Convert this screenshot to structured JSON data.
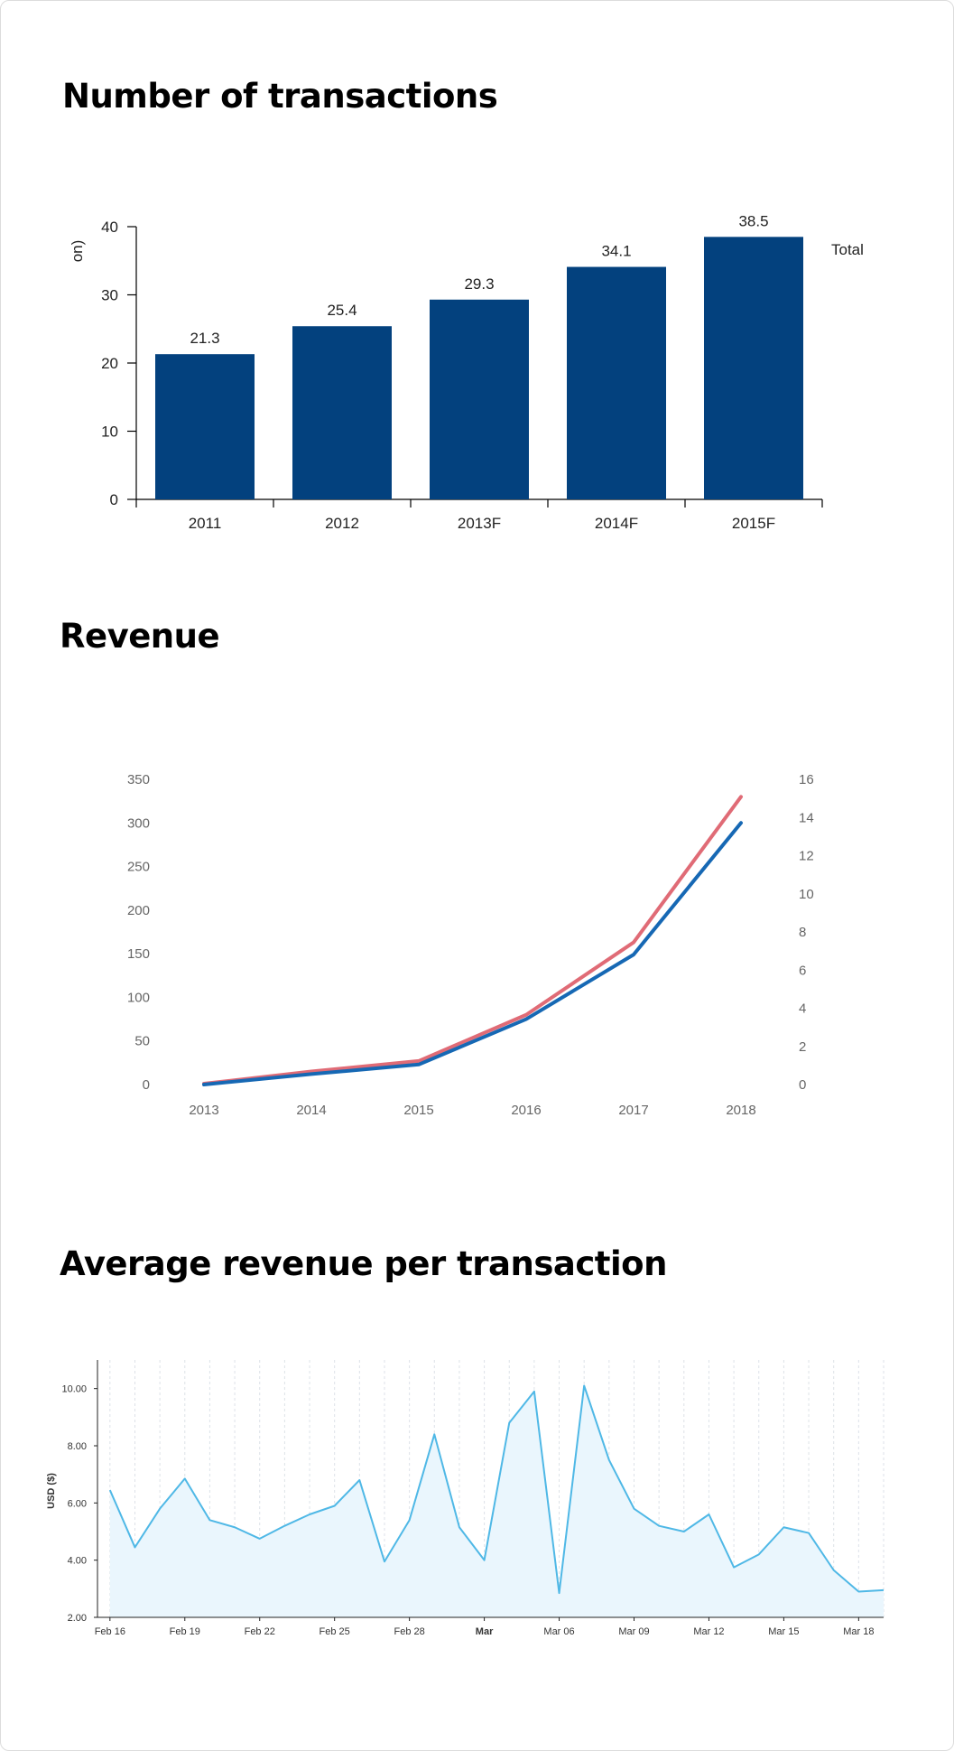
{
  "sections": {
    "transactions_title": "Number of transactions",
    "revenue_title": "Revenue",
    "arpt_title": "Average revenue per transaction"
  },
  "chart_data": [
    {
      "type": "bar",
      "title": "Number of transactions",
      "ylabel_fragment": "on)",
      "categories": [
        "2011",
        "2012",
        "2013F",
        "2014F",
        "2015F"
      ],
      "values": [
        21.3,
        25.4,
        29.3,
        34.1,
        38.5
      ],
      "value_labels": [
        "21.3",
        "25.4",
        "29.3",
        "34.1",
        "38.5"
      ],
      "series": [
        {
          "name": "Total",
          "values": [
            21.3,
            25.4,
            29.3,
            34.1,
            38.5
          ]
        }
      ],
      "ylim": [
        0,
        40
      ],
      "yticks": [
        "0",
        "10",
        "20",
        "30",
        "40"
      ],
      "bar_color": "#03417e",
      "grid": false,
      "legend": "right"
    },
    {
      "type": "line",
      "title": "Revenue",
      "x": [
        "2013",
        "2014",
        "2015",
        "2016",
        "2017",
        "2018"
      ],
      "series": [
        {
          "color": "#e06b76",
          "axis": "left",
          "values": [
            1,
            15,
            27,
            80,
            163,
            330
          ]
        },
        {
          "color": "#1668b4",
          "axis": "left",
          "values": [
            0,
            12,
            23,
            75,
            149,
            300
          ]
        }
      ],
      "ylim_left": [
        0,
        350
      ],
      "ylim_right": [
        0,
        16
      ],
      "yticks_left": [
        "0",
        "50",
        "100",
        "150",
        "200",
        "250",
        "300",
        "350"
      ],
      "yticks_right": [
        "0",
        "2",
        "4",
        "6",
        "8",
        "10",
        "12",
        "14",
        "16"
      ],
      "grid": false
    },
    {
      "type": "area",
      "title": "Average revenue per transaction",
      "ylabel": "USD ($)",
      "x_days": [
        0,
        2,
        4,
        6,
        8,
        10,
        12,
        14,
        16,
        18,
        20,
        22,
        24,
        26,
        28,
        30,
        32,
        34,
        36,
        38,
        40,
        42,
        44,
        46,
        48,
        50,
        52,
        54,
        56,
        58,
        60,
        62
      ],
      "values": [
        6.45,
        4.45,
        5.8,
        6.85,
        5.4,
        5.15,
        4.75,
        5.2,
        5.6,
        5.9,
        6.8,
        3.95,
        5.4,
        8.4,
        5.15,
        4.0,
        8.8,
        9.9,
        2.85,
        10.1,
        7.5,
        5.8,
        5.2,
        5.0,
        5.6,
        3.75,
        4.2,
        5.15,
        4.95,
        3.65,
        2.9,
        2.95
      ],
      "ylim": [
        2,
        11
      ],
      "yticks": [
        "2.00",
        "4.00",
        "6.00",
        "8.00",
        "10.00"
      ],
      "yticks_values": [
        2,
        4,
        6,
        8,
        10
      ],
      "xticks": [
        "Feb 16",
        "Feb 19",
        "Feb 22",
        "Feb 25",
        "Feb 28",
        "Mar",
        "Mar 06",
        "Mar 09",
        "Mar 12",
        "Mar 15",
        "Mar 18"
      ],
      "xticks_days": [
        0,
        6,
        12,
        18,
        24,
        30,
        36,
        42,
        48,
        54,
        60
      ],
      "xtick_bold": "Mar",
      "xlim_days": [
        -1,
        62
      ],
      "line_color": "#4fb8e6",
      "fill_color": "#eaf6fd",
      "grid": "vertical-dashed"
    }
  ]
}
